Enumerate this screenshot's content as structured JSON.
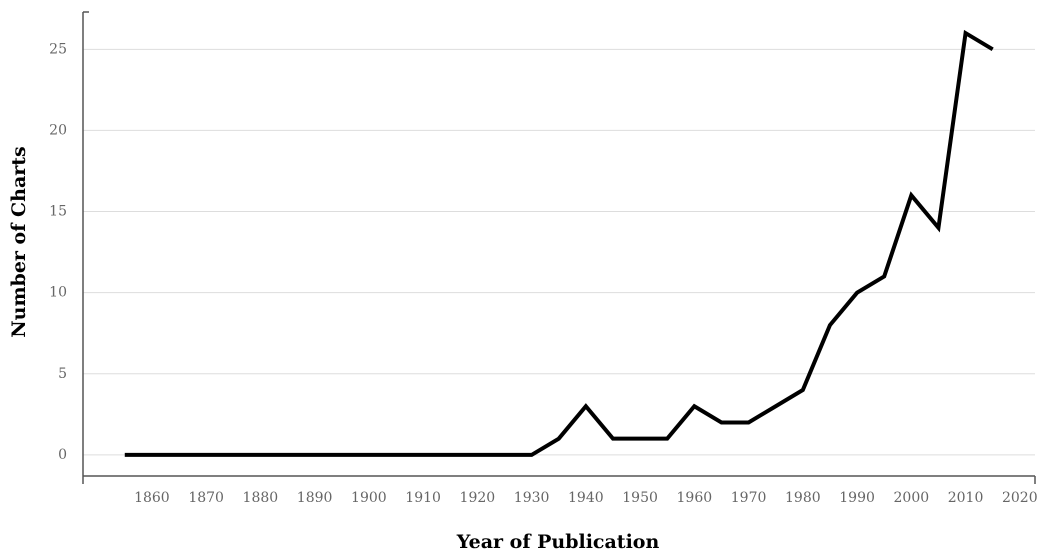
{
  "chart_data": {
    "type": "line",
    "x_label": "Year of Publication",
    "y_label": "Number of Charts",
    "x": [
      1855,
      1860,
      1865,
      1870,
      1875,
      1880,
      1885,
      1890,
      1895,
      1900,
      1905,
      1910,
      1915,
      1920,
      1925,
      1930,
      1935,
      1940,
      1945,
      1950,
      1955,
      1960,
      1965,
      1970,
      1975,
      1980,
      1985,
      1990,
      1995,
      2000,
      2005,
      2010,
      2015
    ],
    "values": [
      0,
      0,
      0,
      0,
      0,
      0,
      0,
      0,
      0,
      0,
      0,
      0,
      0,
      0,
      0,
      0,
      1,
      3,
      1,
      1,
      1,
      3,
      2,
      2,
      3,
      4,
      8,
      10,
      11,
      16,
      14,
      26,
      25
    ],
    "color": "#000000",
    "xlim": [
      1847.3,
      2022.8
    ],
    "xticks": [
      1860,
      1870,
      1880,
      1890,
      1900,
      1910,
      1920,
      1930,
      1940,
      1950,
      1960,
      1970,
      1980,
      1990,
      2000,
      2010,
      2020
    ],
    "ylim": [
      -1.3,
      27.3
    ],
    "yticks": [
      0,
      5,
      10,
      15,
      20,
      25
    ],
    "grid": true
  }
}
